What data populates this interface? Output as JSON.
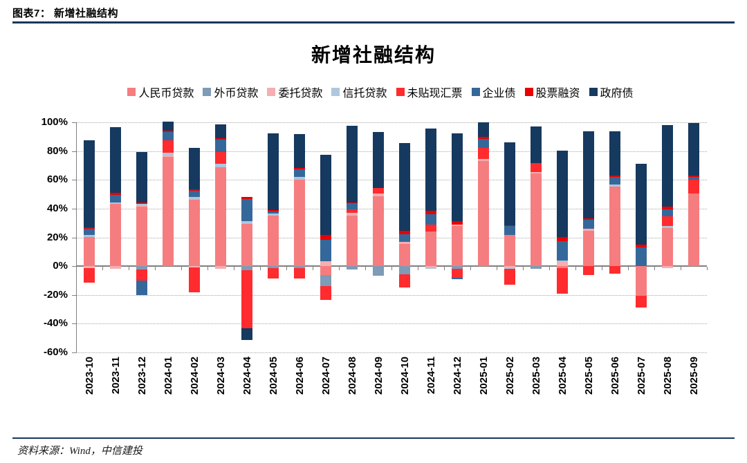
{
  "page": {
    "header_title": "图表7： 新增社融结构",
    "footer_source": "资料来源：Wind，中信建投"
  },
  "chart": {
    "title": "新增社融结构"
  },
  "colors": {
    "rule": "#17375E",
    "gridline": "#A6A6A6",
    "zero_line": "#7F7F7F"
  },
  "chart_data": {
    "type": "bar",
    "stacked": true,
    "title": "新增社融结构",
    "xlabel": "",
    "ylabel": "",
    "ylim": [
      -60,
      100
    ],
    "ytick_step": 20,
    "ytick_labels": [
      "100%",
      "80%",
      "60%",
      "40%",
      "20%",
      "0%",
      "-20%",
      "-40%",
      "-60%"
    ],
    "grid": true,
    "legend_position": "top",
    "unit": "percent",
    "categories": [
      "2023-10",
      "2023-11",
      "2023-12",
      "2024-01",
      "2024-02",
      "2024-03",
      "2024-04",
      "2024-05",
      "2024-06",
      "2024-07",
      "2024-08",
      "2024-09",
      "2024-10",
      "2024-11",
      "2024-12",
      "2025-01",
      "2025-02",
      "2025-03",
      "2025-04",
      "2025-05",
      "2025-06",
      "2025-07",
      "2025-08",
      "2025-09"
    ],
    "series": [
      {
        "name": "人民币贷款",
        "color": "#F57D7F",
        "values": [
          20.3,
          43.2,
          41.6,
          76.0,
          46.4,
          68.8,
          29.3,
          35.2,
          60.3,
          -6.4,
          35.2,
          48.8,
          15.5,
          24.0,
          28.0,
          73.1,
          21.9,
          64.3,
          -1.6,
          24.5,
          55.2,
          -20.8,
          26.4,
          50.7
        ]
      },
      {
        "name": "外币贷款",
        "color": "#7E9BB7",
        "values": [
          0,
          0,
          -2.5,
          0,
          0,
          0,
          -2.7,
          -1.6,
          -1.6,
          -7.5,
          -2.4,
          -6.9,
          -5.6,
          0,
          -2.0,
          0,
          0,
          -2.0,
          0,
          0,
          0,
          0,
          0,
          0
        ]
      },
      {
        "name": "委托贷款",
        "color": "#F5AEB1",
        "values": [
          -1.5,
          -2.0,
          0.8,
          1.0,
          -0.8,
          -2.0,
          0,
          0,
          0,
          3.5,
          1.0,
          1.5,
          1.2,
          -1.0,
          1.0,
          1.2,
          -1.0,
          1.0,
          3.5,
          1.4,
          0,
          0,
          -1.5,
          0
        ]
      },
      {
        "name": "信托贷款",
        "color": "#AFC6DD",
        "values": [
          1.3,
          1.0,
          0.8,
          2.0,
          1.6,
          2.4,
          2.0,
          1.6,
          1.6,
          0,
          1.0,
          0,
          0,
          -1.0,
          0,
          0,
          -1.0,
          0,
          0.5,
          0,
          1.6,
          0,
          1.6,
          0
        ]
      },
      {
        "name": "未贴现汇票",
        "color": "#FF2B2E",
        "values": [
          -10.0,
          0,
          -7.5,
          8.3,
          -17.6,
          8.0,
          -40.5,
          -7.2,
          -7.2,
          -9.6,
          2.2,
          4.0,
          -9.3,
          4.8,
          -6.0,
          7.7,
          -10.9,
          6.2,
          -17.6,
          -6.0,
          -5.0,
          -8.0,
          6.7,
          9.6
        ]
      },
      {
        "name": "企业债",
        "color": "#35689A",
        "values": [
          4.2,
          5.3,
          -10.0,
          5.8,
          4.5,
          8.8,
          15.2,
          1.0,
          5.3,
          14.9,
          4.2,
          0,
          5.6,
          7.2,
          -1.2,
          6.7,
          5.8,
          0,
          13.3,
          6.2,
          5.4,
          12.8,
          4.8,
          1.6
        ]
      },
      {
        "name": "股票融资",
        "color": "#E90001",
        "values": [
          1.0,
          1.6,
          1.1,
          1.0,
          1.1,
          1.1,
          1.7,
          1.1,
          1.1,
          3.5,
          0.8,
          0,
          2.4,
          2.4,
          2.4,
          1.3,
          0.8,
          0,
          2.9,
          1.0,
          1.0,
          2.0,
          2.0,
          1.0
        ]
      },
      {
        "name": "政府债",
        "color": "#16395F",
        "values": [
          60.8,
          45.6,
          35.2,
          6.5,
          28.8,
          9.3,
          -8.2,
          53.3,
          23.4,
          55.5,
          53.4,
          38.9,
          60.8,
          57.3,
          60.8,
          10.2,
          57.4,
          25.6,
          60.0,
          60.8,
          30.7,
          56.3,
          56.8,
          36.8
        ]
      }
    ]
  }
}
